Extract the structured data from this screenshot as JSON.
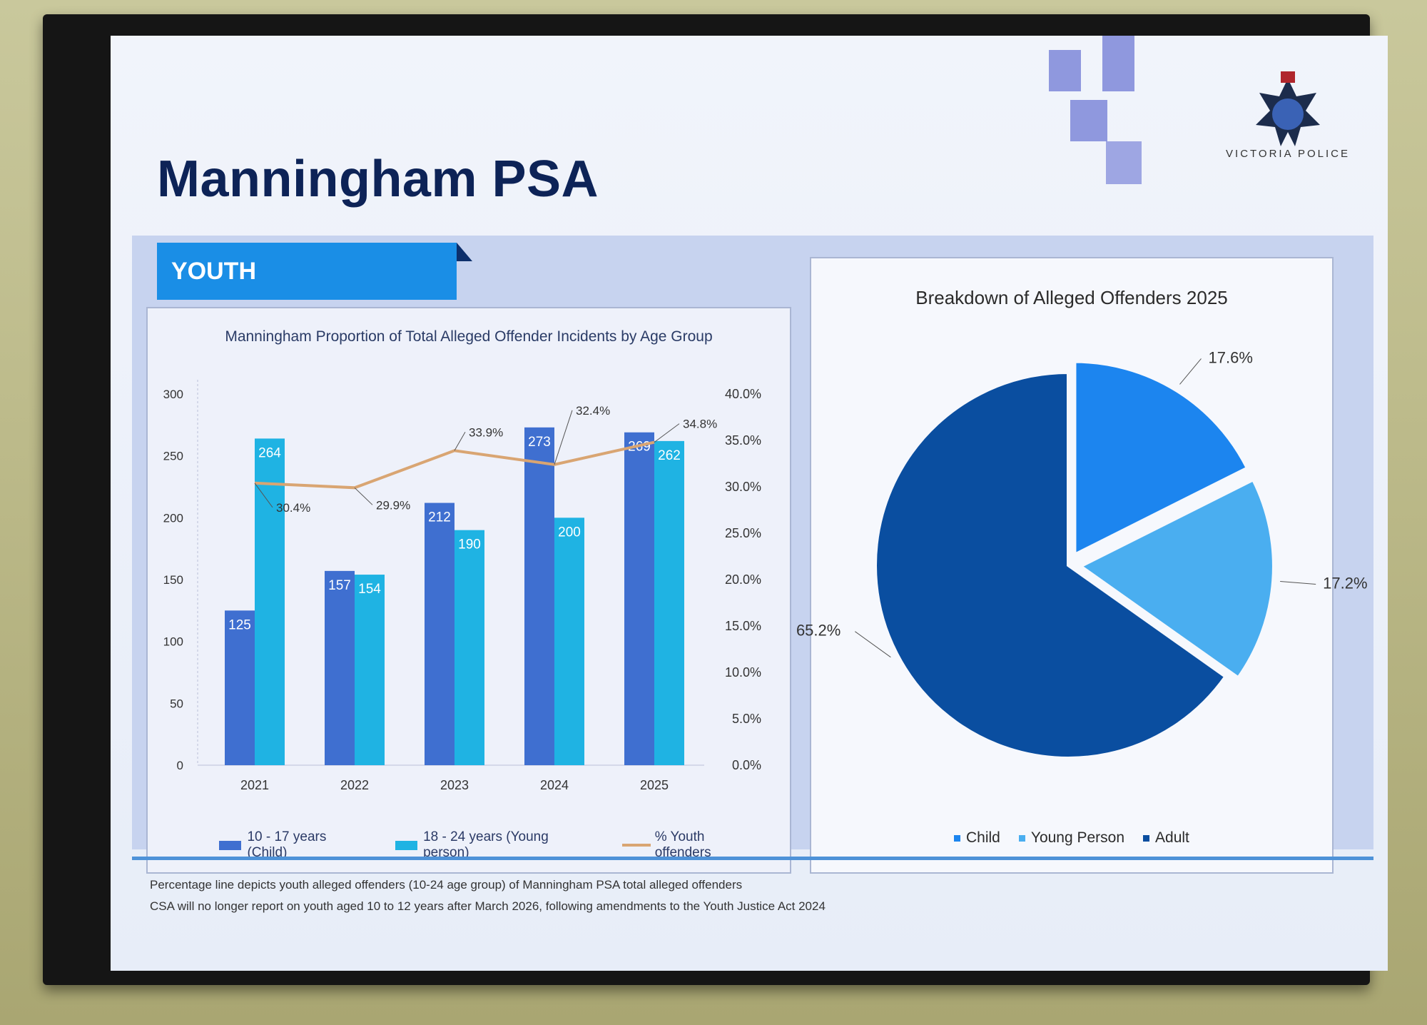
{
  "slide": {
    "title": "Manningham PSA",
    "section_tab": "YOUTH",
    "logo_text": "VICTORIA POLICE"
  },
  "footnotes": [
    "Percentage line depicts youth alleged offenders (10-24 age group) of Manningham PSA total alleged offenders",
    "CSA will no longer report on youth aged 10 to 12 years after March 2026, following amendments to the Youth Justice Act 2024"
  ],
  "colors": {
    "child": "#3f6fd0",
    "young_person": "#1fb3e3",
    "youth_line": "#d9a572",
    "pie_child": "#1c85ef",
    "pie_young": "#4aaef0",
    "pie_adult": "#0a4ea0",
    "tab": "#1a8ee6",
    "title": "#0d2357"
  },
  "chart_data": [
    {
      "type": "bar",
      "title": "Manningham Proportion of Total Alleged Offender Incidents by Age Group",
      "categories": [
        "2021",
        "2022",
        "2023",
        "2024",
        "2025"
      ],
      "series": [
        {
          "name": "10 - 17 years (Child)",
          "values": [
            125,
            157,
            212,
            273,
            269
          ]
        },
        {
          "name": "18 - 24 years (Young person)",
          "values": [
            264,
            154,
            190,
            200,
            262
          ]
        }
      ],
      "line_series": {
        "name": "% Youth offenders",
        "values": [
          30.4,
          29.9,
          33.9,
          32.4,
          34.8
        ],
        "labels": [
          "30.4%",
          "29.9%",
          "33.9%",
          "32.4%",
          "34.8%"
        ]
      },
      "ylim": [
        0,
        300
      ],
      "yticks": [
        "0",
        "50",
        "100",
        "150",
        "200",
        "250",
        "300"
      ],
      "y2lim": [
        0,
        40
      ],
      "y2ticks": [
        "0.0%",
        "5.0%",
        "10.0%",
        "15.0%",
        "20.0%",
        "25.0%",
        "30.0%",
        "35.0%",
        "40.0%"
      ],
      "legend_position": "bottom"
    },
    {
      "type": "pie",
      "title": "Breakdown of Alleged Offenders 2025",
      "slices": [
        {
          "name": "Child",
          "value": 17.6,
          "label": "17.6%"
        },
        {
          "name": "Young Person",
          "value": 17.2,
          "label": "17.2%"
        },
        {
          "name": "Adult",
          "value": 65.2,
          "label": "65.2%"
        }
      ],
      "legend_position": "bottom"
    }
  ]
}
